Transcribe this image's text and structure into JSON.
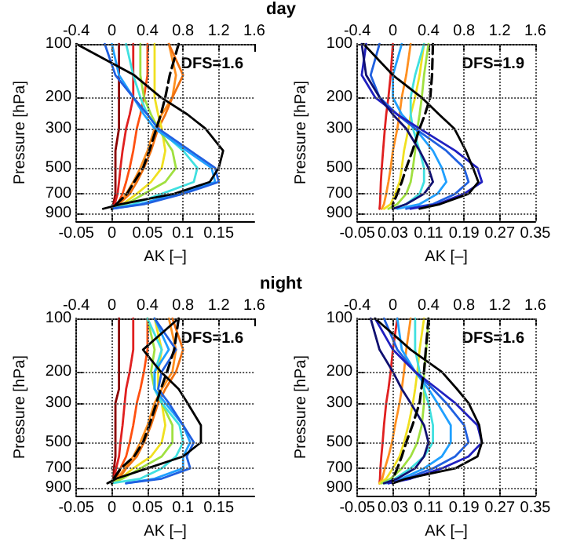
{
  "chart_data": [
    {
      "type": "line",
      "title": "day",
      "orientation": "horizontal",
      "xlabel": "AK [–]",
      "ylabel": "Pressure [hPa]",
      "annotations": [
        "DFS=1.6"
      ],
      "log": "y",
      "grid": true,
      "marker": "none",
      "x": [
        100,
        150,
        200,
        250,
        300,
        400,
        500,
        600,
        700,
        800,
        850
      ],
      "xlim": [
        -0.05,
        0.2
      ],
      "xticks": [
        -0.05,
        0,
        0.05,
        0.1,
        0.15
      ],
      "x2lim": [
        -0.4,
        1.6
      ],
      "x2ticks": [
        -0.4,
        0,
        0.4,
        0.8,
        1.2,
        1.6
      ],
      "ylim": [
        1000,
        100
      ],
      "yticks": [
        100,
        200,
        300,
        500,
        700,
        900
      ],
      "series": [
        {
          "color": "#8b0000",
          "values": [
            0.01,
            0.01,
            0.01,
            0.01,
            0.01,
            0.005,
            0.005,
            0.005,
            0.005,
            0.002,
            0
          ]
        },
        {
          "color": "#e02020",
          "values": [
            0.03,
            0.03,
            0.03,
            0.025,
            0.02,
            0.015,
            0.012,
            0.01,
            0.008,
            0.004,
            0
          ]
        },
        {
          "color": "#ff5010",
          "values": [
            0.05,
            0.05,
            0.045,
            0.04,
            0.035,
            0.03,
            0.025,
            0.02,
            0.015,
            0.008,
            0
          ]
        },
        {
          "color": "#ff9020",
          "values": [
            0.08,
            0.09,
            0.085,
            0.07,
            0.06,
            0.05,
            0.04,
            0.03,
            0.02,
            0.01,
            0
          ]
        },
        {
          "color": "#f07010",
          "values": [
            0.08,
            0.1,
            0.085,
            0.075,
            0.065,
            0.055,
            0.045,
            0.035,
            0.025,
            0.01,
            0
          ]
        },
        {
          "color": "#f0e020",
          "values": [
            0.06,
            0.06,
            0.06,
            0.065,
            0.07,
            0.075,
            0.07,
            0.055,
            0.035,
            0.015,
            0
          ]
        },
        {
          "color": "#a0e040",
          "values": [
            0.04,
            0.04,
            0.045,
            0.055,
            0.065,
            0.085,
            0.09,
            0.075,
            0.045,
            0.02,
            0
          ]
        },
        {
          "color": "#40e0e0",
          "values": [
            0.02,
            0.03,
            0.04,
            0.05,
            0.065,
            0.1,
            0.12,
            0.115,
            0.07,
            0.03,
            0
          ]
        },
        {
          "color": "#20a0ff",
          "values": [
            0,
            0.01,
            0.03,
            0.045,
            0.06,
            0.105,
            0.14,
            0.145,
            0.09,
            0.04,
            0
          ]
        },
        {
          "color": "#2060e0",
          "values": [
            -0.01,
            0.005,
            0.03,
            0.05,
            0.065,
            0.11,
            0.145,
            0.15,
            0.1,
            0.045,
            0
          ]
        },
        {
          "color": "#000000",
          "axis": "x2",
          "values": [
            -0.4,
            0.25,
            0.55,
            0.85,
            1.05,
            1.25,
            1.2,
            1.1,
            0.7,
            0.1,
            -0.1
          ]
        },
        {
          "color": "#000000",
          "axis": "x2",
          "line_style": "dashed",
          "values": [
            0.75,
            0.65,
            0.6,
            0.55,
            0.5,
            0.42,
            0.35,
            0.25,
            0.17,
            0.05,
            0
          ]
        }
      ]
    },
    {
      "type": "line",
      "orientation": "horizontal",
      "xlabel": "AK [–]",
      "ylabel": "Pressure [hPa]",
      "annotations": [
        "DFS=1.9"
      ],
      "log": "y",
      "grid": true,
      "marker": "none",
      "x": [
        100,
        150,
        200,
        250,
        300,
        400,
        500,
        600,
        700,
        800,
        850
      ],
      "xlim": [
        -0.05,
        0.35
      ],
      "xticks": [
        -0.05,
        0.03,
        0.11,
        0.19,
        0.27,
        0.35
      ],
      "x2lim": [
        -0.4,
        1.6
      ],
      "x2ticks": [
        -0.4,
        0,
        0.4,
        0.8,
        1.2,
        1.6
      ],
      "ylim": [
        1000,
        100
      ],
      "yticks": [
        100,
        200,
        300,
        500,
        700,
        900
      ],
      "series": [
        {
          "color": "#e02020",
          "values": [
            0.03,
            0.025,
            0.02,
            0.015,
            0.012,
            0.008,
            0.005,
            0.003,
            0.002,
            0.001,
            0
          ]
        },
        {
          "color": "#ff9020",
          "values": [
            0.07,
            0.06,
            0.05,
            0.045,
            0.04,
            0.03,
            0.025,
            0.02,
            0.015,
            0.01,
            0.005
          ]
        },
        {
          "color": "#f0e020",
          "values": [
            0.1,
            0.09,
            0.08,
            0.07,
            0.065,
            0.055,
            0.05,
            0.045,
            0.035,
            0.025,
            0.01
          ]
        },
        {
          "color": "#a0e040",
          "values": [
            0.11,
            0.1,
            0.095,
            0.09,
            0.085,
            0.08,
            0.075,
            0.07,
            0.06,
            0.04,
            0.02
          ]
        },
        {
          "color": "#40e0e0",
          "values": [
            0.1,
            0.08,
            0.07,
            0.07,
            0.075,
            0.09,
            0.1,
            0.1,
            0.09,
            0.06,
            0.03
          ]
        },
        {
          "color": "#20a0ff",
          "values": [
            0.05,
            0.03,
            0.03,
            0.05,
            0.08,
            0.12,
            0.14,
            0.15,
            0.13,
            0.09,
            0.04
          ]
        },
        {
          "color": "#2060e0",
          "values": [
            0,
            -0.02,
            0,
            0.04,
            0.08,
            0.15,
            0.19,
            0.2,
            0.17,
            0.12,
            0.06
          ]
        },
        {
          "color": "#2020c0",
          "values": [
            -0.03,
            -0.04,
            -0.01,
            0.04,
            0.09,
            0.17,
            0.22,
            0.23,
            0.19,
            0.13,
            0.07
          ]
        },
        {
          "color": "#101070",
          "values": [
            -0.04,
            -0.03,
            0,
            0.03,
            0.06,
            0.09,
            0.11,
            0.12,
            0.1,
            0.06,
            0.03
          ]
        },
        {
          "color": "#000000",
          "axis": "x2",
          "values": [
            -0.33,
            0.0,
            0.32,
            0.52,
            0.69,
            0.82,
            0.9,
            0.96,
            0.85,
            0.53,
            0.3
          ]
        },
        {
          "color": "#000000",
          "axis": "x2",
          "line_style": "dashed",
          "values": [
            0.45,
            0.44,
            0.42,
            0.36,
            0.3,
            0.22,
            0.15,
            0.1,
            0.05,
            0,
            0
          ]
        }
      ]
    },
    {
      "type": "line",
      "title": "night",
      "orientation": "horizontal",
      "xlabel": "AK [–]",
      "ylabel": "Pressure [hPa]",
      "annotations": [
        "DFS=1.6"
      ],
      "log": "y",
      "grid": true,
      "marker": "none",
      "x": [
        100,
        150,
        200,
        250,
        300,
        400,
        500,
        600,
        700,
        800,
        850
      ],
      "xlim": [
        -0.05,
        0.2
      ],
      "xticks": [
        -0.05,
        0,
        0.05,
        0.1,
        0.15
      ],
      "x2lim": [
        -0.4,
        1.6
      ],
      "x2ticks": [
        -0.4,
        0,
        0.4,
        0.8,
        1.2,
        1.6
      ],
      "ylim": [
        1000,
        100
      ],
      "yticks": [
        100,
        200,
        300,
        500,
        700,
        900
      ],
      "series": [
        {
          "color": "#8b0000",
          "values": [
            0.01,
            0.01,
            0.01,
            0.01,
            0.005,
            0.005,
            0.005,
            0.005,
            0.003,
            0.002,
            0
          ]
        },
        {
          "color": "#e02020",
          "values": [
            0.03,
            0.03,
            0.025,
            0.02,
            0.018,
            0.015,
            0.012,
            0.01,
            0.006,
            0.003,
            0
          ]
        },
        {
          "color": "#ff5010",
          "values": [
            0.05,
            0.05,
            0.045,
            0.04,
            0.035,
            0.03,
            0.025,
            0.02,
            0.012,
            0.006,
            0
          ]
        },
        {
          "color": "#ff9020",
          "values": [
            0.08,
            0.09,
            0.085,
            0.07,
            0.06,
            0.05,
            0.04,
            0.03,
            0.018,
            0.008,
            0
          ]
        },
        {
          "color": "#f07010",
          "values": [
            0.085,
            0.1,
            0.09,
            0.075,
            0.065,
            0.055,
            0.045,
            0.035,
            0.02,
            0.01,
            0
          ]
        },
        {
          "color": "#f0e020",
          "values": [
            0.06,
            0.07,
            0.065,
            0.065,
            0.07,
            0.075,
            0.07,
            0.055,
            0.03,
            0.012,
            0
          ]
        },
        {
          "color": "#a0e040",
          "values": [
            0.05,
            0.06,
            0.055,
            0.06,
            0.07,
            0.085,
            0.085,
            0.07,
            0.04,
            0.015,
            0
          ]
        },
        {
          "color": "#40e0e0",
          "values": [
            0.05,
            0.07,
            0.06,
            0.06,
            0.07,
            0.095,
            0.1,
            0.09,
            0.07,
            0.04,
            0
          ]
        },
        {
          "color": "#20a0ff",
          "values": [
            0.06,
            0.08,
            0.06,
            0.06,
            0.075,
            0.1,
            0.11,
            0.1,
            0.1,
            0.06,
            0.02
          ]
        },
        {
          "color": "#2060e0",
          "values": [
            0.06,
            0.09,
            0.07,
            0.065,
            0.08,
            0.1,
            0.115,
            0.105,
            0.11,
            0.07,
            0.02
          ]
        },
        {
          "color": "#000000",
          "axis": "x2",
          "values": [
            0.75,
            0.35,
            0.55,
            0.75,
            0.85,
            1.0,
            1.0,
            0.8,
            0.4,
            0.05,
            -0.05
          ]
        },
        {
          "color": "#000000",
          "axis": "x2",
          "line_style": "dashed",
          "values": [
            0.75,
            0.7,
            0.62,
            0.55,
            0.5,
            0.42,
            0.35,
            0.25,
            0.1,
            0.02,
            0
          ]
        }
      ]
    },
    {
      "type": "line",
      "orientation": "horizontal",
      "xlabel": "AK [–]",
      "ylabel": "Pressure [hPa]",
      "annotations": [
        "DFS=1.6"
      ],
      "log": "y",
      "grid": true,
      "marker": "none",
      "x": [
        100,
        150,
        200,
        250,
        300,
        400,
        500,
        600,
        700,
        800,
        850
      ],
      "xlim": [
        -0.05,
        0.35
      ],
      "xticks": [
        -0.05,
        0.03,
        0.11,
        0.19,
        0.27,
        0.35
      ],
      "x2lim": [
        -0.4,
        1.6
      ],
      "x2ticks": [
        -0.4,
        0,
        0.4,
        0.8,
        1.2,
        1.6
      ],
      "ylim": [
        1000,
        100
      ],
      "yticks": [
        100,
        200,
        300,
        500,
        700,
        900
      ],
      "series": [
        {
          "color": "#e02020",
          "values": [
            0.04,
            0.03,
            0.025,
            0.02,
            0.015,
            0.01,
            0.007,
            0.004,
            0.002,
            0.001,
            0
          ]
        },
        {
          "color": "#ff9020",
          "values": [
            0.07,
            0.06,
            0.055,
            0.05,
            0.045,
            0.035,
            0.028,
            0.02,
            0.012,
            0.006,
            0
          ]
        },
        {
          "color": "#f0e020",
          "values": [
            0.1,
            0.09,
            0.085,
            0.08,
            0.075,
            0.065,
            0.055,
            0.045,
            0.03,
            0.015,
            0
          ]
        },
        {
          "color": "#a0e040",
          "values": [
            0.11,
            0.105,
            0.1,
            0.1,
            0.1,
            0.095,
            0.085,
            0.07,
            0.05,
            0.025,
            0.005
          ]
        },
        {
          "color": "#40e0e0",
          "values": [
            0.08,
            0.08,
            0.09,
            0.1,
            0.11,
            0.12,
            0.12,
            0.1,
            0.07,
            0.035,
            0.01
          ]
        },
        {
          "color": "#20a0ff",
          "values": [
            0.04,
            0.05,
            0.08,
            0.11,
            0.13,
            0.16,
            0.16,
            0.14,
            0.1,
            0.05,
            0.015
          ]
        },
        {
          "color": "#2060e0",
          "values": [
            0.01,
            0.04,
            0.08,
            0.12,
            0.15,
            0.19,
            0.2,
            0.17,
            0.12,
            0.06,
            0.02
          ]
        },
        {
          "color": "#2020c0",
          "values": [
            -0.01,
            0.03,
            0.08,
            0.13,
            0.17,
            0.22,
            0.23,
            0.2,
            0.14,
            0.07,
            0.02
          ]
        },
        {
          "color": "#101070",
          "values": [
            -0.02,
            0.0,
            0.03,
            0.05,
            0.07,
            0.1,
            0.11,
            0.1,
            0.08,
            0.04,
            0.01
          ]
        },
        {
          "color": "#000000",
          "axis": "x2",
          "values": [
            -0.2,
            0.2,
            0.55,
            0.72,
            0.85,
            0.97,
            1.0,
            0.95,
            0.7,
            0.15,
            0.0
          ]
        },
        {
          "color": "#000000",
          "axis": "x2",
          "line_style": "dashed",
          "values": [
            0.4,
            0.37,
            0.35,
            0.32,
            0.3,
            0.22,
            0.15,
            0.1,
            0.05,
            0,
            0
          ]
        }
      ]
    }
  ]
}
